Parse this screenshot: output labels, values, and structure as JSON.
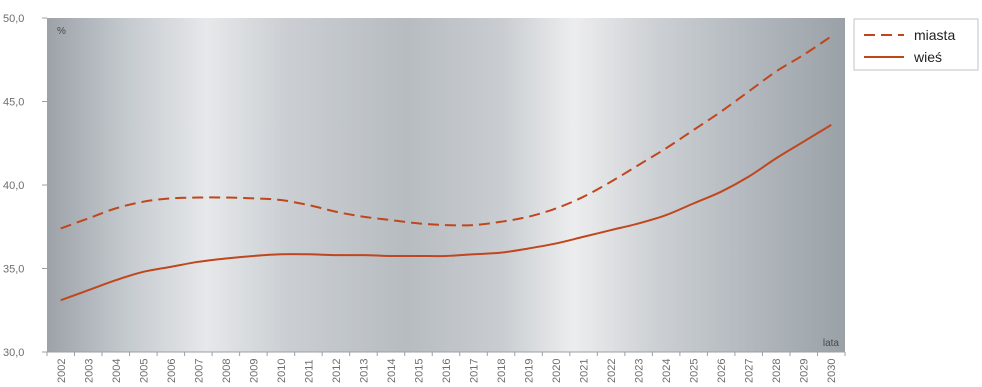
{
  "chart_data": {
    "type": "line",
    "title": "",
    "xlabel": "lata",
    "ylabel": "%",
    "x": [
      "2002",
      "2003",
      "2004",
      "2005",
      "2006",
      "2007",
      "2008",
      "2009",
      "2010",
      "2011",
      "2012",
      "2013",
      "2014",
      "2015",
      "2016",
      "2017",
      "2018",
      "2019",
      "2020",
      "2021",
      "2022",
      "2023",
      "2024",
      "2025",
      "2026",
      "2027",
      "2028",
      "2029",
      "2030"
    ],
    "y_ticks": [
      "30,0",
      "35,0",
      "40,0",
      "45,0",
      "50,0"
    ],
    "ylim": [
      30,
      50
    ],
    "grid": false,
    "legend_position": "right",
    "series": [
      {
        "name": "miasta",
        "style": "dashed",
        "color": "#c0461e",
        "values": [
          37.4,
          38.0,
          38.6,
          39.0,
          39.2,
          39.25,
          39.25,
          39.2,
          39.1,
          38.8,
          38.4,
          38.1,
          37.9,
          37.7,
          37.6,
          37.6,
          37.8,
          38.1,
          38.6,
          39.3,
          40.2,
          41.2,
          42.2,
          43.3,
          44.4,
          45.6,
          46.8,
          47.8,
          48.9
        ]
      },
      {
        "name": "wieś",
        "style": "solid",
        "color": "#c0461e",
        "values": [
          33.1,
          33.7,
          34.3,
          34.8,
          35.1,
          35.4,
          35.6,
          35.75,
          35.85,
          35.85,
          35.8,
          35.8,
          35.75,
          35.75,
          35.75,
          35.85,
          35.95,
          36.2,
          36.5,
          36.9,
          37.3,
          37.7,
          38.2,
          38.9,
          39.6,
          40.5,
          41.6,
          42.6,
          43.6
        ]
      }
    ]
  }
}
